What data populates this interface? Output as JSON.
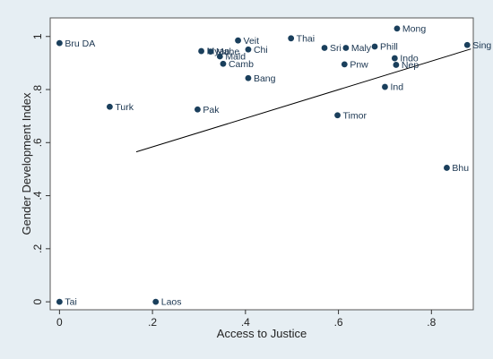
{
  "chart_data": {
    "type": "scatter",
    "title": "",
    "xlabel": "Access to Justice",
    "ylabel": "Gender Development Index",
    "xlim": [
      -0.02,
      0.89
    ],
    "ylim": [
      -0.03,
      1.07
    ],
    "x_ticks": [
      0,
      0.2,
      0.4,
      0.6,
      0.8
    ],
    "x_tick_labels": [
      "0",
      ".2",
      ".4",
      ".6",
      ".8"
    ],
    "y_ticks": [
      0,
      0.2,
      0.4,
      0.6,
      0.8,
      1
    ],
    "y_tick_labels": [
      "0",
      ".2",
      ".4",
      ".6",
      ".8",
      "1"
    ],
    "grid": false,
    "marker_color": "#1a3f5c",
    "fit_line_color": "#000000",
    "points": [
      {
        "label": "Bru DA",
        "x": 0.0,
        "y": 0.975
      },
      {
        "label": "Turk",
        "x": 0.108,
        "y": 0.735
      },
      {
        "label": "Tai",
        "x": 0.0,
        "y": 0.0
      },
      {
        "label": "Laos",
        "x": 0.207,
        "y": 0.0
      },
      {
        "label": "Pak",
        "x": 0.297,
        "y": 0.725
      },
      {
        "label": "Myan",
        "x": 0.305,
        "y": 0.945
      },
      {
        "label": "Mahe",
        "x": 0.325,
        "y": 0.943
      },
      {
        "label": "Mald",
        "x": 0.345,
        "y": 0.925
      },
      {
        "label": "Camb",
        "x": 0.352,
        "y": 0.897
      },
      {
        "label": "Veit",
        "x": 0.384,
        "y": 0.985
      },
      {
        "label": "Chi",
        "x": 0.406,
        "y": 0.951
      },
      {
        "label": "Bang",
        "x": 0.406,
        "y": 0.843
      },
      {
        "label": "Thai",
        "x": 0.498,
        "y": 0.993
      },
      {
        "label": "Sri",
        "x": 0.57,
        "y": 0.957
      },
      {
        "label": "Maly",
        "x": 0.616,
        "y": 0.957
      },
      {
        "label": "Phill",
        "x": 0.678,
        "y": 0.962
      },
      {
        "label": "Pnw",
        "x": 0.613,
        "y": 0.895
      },
      {
        "label": "Timor",
        "x": 0.598,
        "y": 0.703
      },
      {
        "label": "Mong",
        "x": 0.726,
        "y": 1.03
      },
      {
        "label": "Indo",
        "x": 0.721,
        "y": 0.918
      },
      {
        "label": "Nep",
        "x": 0.724,
        "y": 0.893
      },
      {
        "label": "Ind",
        "x": 0.7,
        "y": 0.81
      },
      {
        "label": "Sing",
        "x": 0.877,
        "y": 0.968
      },
      {
        "label": "Bhu",
        "x": 0.833,
        "y": 0.505
      }
    ],
    "fit_line": {
      "x": [
        0.165,
        0.885
      ],
      "y": [
        0.565,
        0.953
      ]
    }
  }
}
